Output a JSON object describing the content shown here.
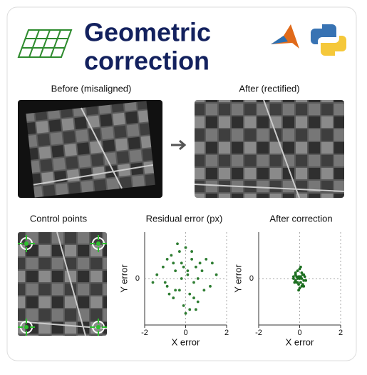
{
  "title": [
    "Geometric",
    "correction"
  ],
  "panels": {
    "before": "Before (misaligned)",
    "after": "After (rectified)",
    "control": "Control points"
  },
  "chart_data": [
    {
      "type": "scatter",
      "title": "Residual error (px)",
      "x_label": "X error",
      "y_label": "Y error",
      "color": "#2e7d32",
      "xlim": [
        -2,
        2
      ],
      "ylim": [
        -1.2,
        1.2
      ],
      "xticks": [
        -2,
        0,
        2
      ],
      "yticks": [
        0
      ],
      "x": [
        -1.4,
        -1.1,
        -0.9,
        -0.7,
        -0.6,
        -0.5,
        -0.4,
        -0.3,
        -0.2,
        -0.1,
        0,
        0.1,
        0.2,
        0.3,
        0.4,
        0.5,
        0.6,
        0.8,
        1.0,
        1.2,
        1.5,
        -0.8,
        -0.3,
        0.2,
        0.7,
        -1.0,
        0.4,
        -0.5,
        0.1,
        -0.2,
        0.9,
        -0.6,
        0.3,
        1.3,
        -1.6,
        0.0,
        0.6,
        -0.1,
        0.5,
        -0.9
      ],
      "values": [
        0.1,
        0.3,
        -0.2,
        0.6,
        -0.5,
        0.2,
        0.9,
        -0.3,
        0.4,
        -0.7,
        0.8,
        0.1,
        -0.4,
        0.5,
        -0.1,
        0.3,
        -0.6,
        0.2,
        0.5,
        -0.2,
        0.1,
        -0.4,
        0.7,
        -0.8,
        0.4,
        -0.1,
        -0.5,
        -0.3,
        0.2,
        0.0,
        -0.3,
        0.4,
        0.7,
        0.4,
        -0.1,
        -0.9,
        0.0,
        0.3,
        -0.8,
        0.5
      ]
    },
    {
      "type": "scatter",
      "title": "After correction",
      "x_label": "X error",
      "y_label": "Y error",
      "color": "#1b6e1f",
      "xlim": [
        -2,
        2
      ],
      "ylim": [
        -1.2,
        1.2
      ],
      "xticks": [
        -2,
        0,
        2
      ],
      "yticks": [
        0
      ],
      "x": [
        -0.3,
        -0.2,
        -0.15,
        -0.1,
        -0.05,
        0,
        0.05,
        0.1,
        0.15,
        0.2,
        0.25,
        -0.25,
        -0.1,
        0,
        0.1,
        0.2,
        -0.2,
        -0.05,
        0.05,
        0.15,
        -0.15,
        0,
        0.1,
        -0.1,
        0.3,
        -0.3,
        0.05,
        -0.05,
        0.2,
        -0.2
      ],
      "values": [
        0,
        0.1,
        -0.1,
        0.2,
        -0.15,
        0.25,
        0.05,
        -0.2,
        0.1,
        -0.05,
        0.05,
        -0.1,
        0,
        -0.25,
        0.15,
        0.1,
        0.15,
        0.05,
        -0.1,
        -0.15,
        0.05,
        0,
        0,
        -0.1,
        -0.05,
        0.05,
        0.3,
        -0.3,
        -0.2,
        -0.05
      ]
    }
  ]
}
